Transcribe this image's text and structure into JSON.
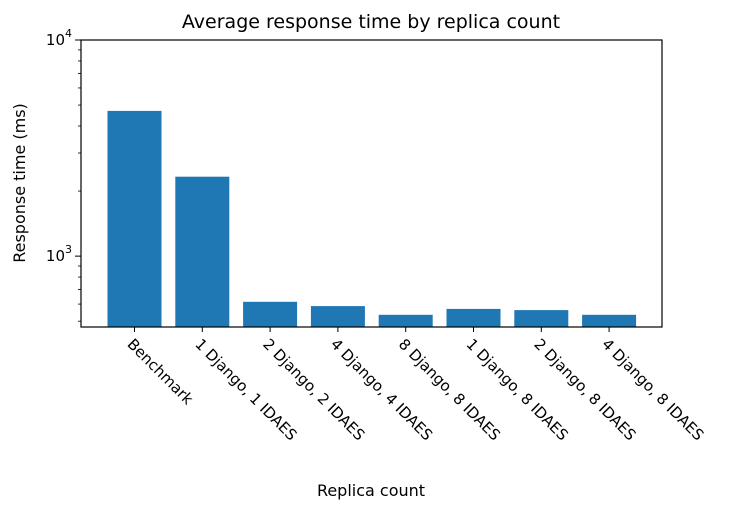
{
  "chart_data": {
    "type": "bar",
    "title": "Average response time by replica count",
    "xlabel": "Replica count",
    "ylabel": "Response time (ms)",
    "yscale": "log",
    "ylim": [
      470,
      10000
    ],
    "yticks": [
      {
        "value": 1000,
        "base": "10",
        "exp": "3"
      },
      {
        "value": 10000,
        "base": "10",
        "exp": "4"
      }
    ],
    "categories": [
      "Benchmark",
      "1 Django, 1 IDAES",
      "2 Django, 2 IDAES",
      "4 Django, 4 IDAES",
      "8 Django, 8 IDAES",
      "1 Django, 8 IDAES",
      "2 Django, 8 IDAES",
      "4 Django, 8 IDAES"
    ],
    "values": [
      4700,
      2330,
      615,
      587,
      535,
      570,
      563,
      535
    ],
    "bar_color": "#1f77b4",
    "grid": false,
    "legend": "none"
  }
}
